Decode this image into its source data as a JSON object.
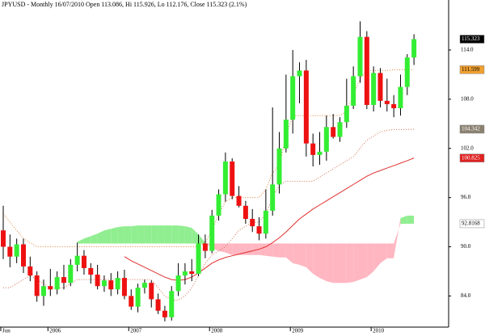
{
  "chart_data": {
    "type": "candlestick",
    "title": "JPYUSD - Monthly 16/07/2010 Open 113.086, Hi 115.926, Lo 112.176, Close 115.323 (2.1%)",
    "categories": [
      "Jun",
      null,
      null,
      null,
      null,
      null,
      null,
      "2006",
      null,
      null,
      null,
      null,
      null,
      null,
      null,
      null,
      null,
      null,
      null,
      "2007",
      null,
      null,
      null,
      null,
      null,
      null,
      null,
      null,
      null,
      null,
      null,
      "2008",
      null,
      null,
      null,
      null,
      null,
      null,
      null,
      null,
      null,
      null,
      null,
      "2009",
      null,
      null,
      null,
      null,
      null,
      null,
      null,
      null,
      null,
      null,
      null,
      "2010",
      null,
      null,
      null,
      null,
      null,
      null
    ],
    "open": [
      92.0,
      90.0,
      88.8,
      90.3,
      87.6,
      86.5,
      84.0,
      85.2,
      84.8,
      86.3,
      85.6,
      87.8,
      88.9,
      87.4,
      86.6,
      85.2,
      85.9,
      84.8,
      86.2,
      84.0,
      82.7,
      85.0,
      85.6,
      83.6,
      82.2,
      81.4,
      84.6,
      86.5,
      87.0,
      86.7,
      90.4,
      89.5,
      93.8,
      96.4,
      100.4,
      96.2,
      95.0,
      93.4,
      92.5,
      91.6,
      94.4,
      97.6,
      102.0,
      105.5,
      110.8,
      111.5,
      102.6,
      101.2,
      101.6,
      104.6,
      103.4,
      105.2,
      107.2,
      110.8,
      115.6,
      107.3,
      111.2,
      107.8,
      107.4,
      106.9,
      109.5,
      113.086
    ],
    "high": [
      95.0,
      91.5,
      91.0,
      91.0,
      88.8,
      87.0,
      86.0,
      87.3,
      87.0,
      87.8,
      88.5,
      90.5,
      89.6,
      88.0,
      87.8,
      86.5,
      86.8,
      87.0,
      87.2,
      84.8,
      85.5,
      86.0,
      85.9,
      84.3,
      82.8,
      85.2,
      88.0,
      88.0,
      88.5,
      91.5,
      91.5,
      94.5,
      97.0,
      101.5,
      100.8,
      97.4,
      95.6,
      94.6,
      93.6,
      97.0,
      107.0,
      104.0,
      111.0,
      114.0,
      112.5,
      112.8,
      103.8,
      104.0,
      106.0,
      106.2,
      105.8,
      110.5,
      112.0,
      117.5,
      116.3,
      112.0,
      111.8,
      110.5,
      108.5,
      111.0,
      113.5,
      115.926
    ],
    "low": [
      88.5,
      87.5,
      88.0,
      86.8,
      85.8,
      83.3,
      82.8,
      84.0,
      84.2,
      84.8,
      85.2,
      87.0,
      86.6,
      85.5,
      84.8,
      84.5,
      84.0,
      84.2,
      83.6,
      82.3,
      82.0,
      84.3,
      82.6,
      81.8,
      80.9,
      81.0,
      84.0,
      85.4,
      85.8,
      86.4,
      88.6,
      89.2,
      93.2,
      95.5,
      95.8,
      94.8,
      92.8,
      91.8,
      90.8,
      91.0,
      93.8,
      96.5,
      101.5,
      103.8,
      107.5,
      101.0,
      99.8,
      100.0,
      100.5,
      103.2,
      102.8,
      104.5,
      106.8,
      110.0,
      106.8,
      106.5,
      107.0,
      106.5,
      105.8,
      106.0,
      108.5,
      112.176
    ],
    "close": [
      90.0,
      88.8,
      90.3,
      87.6,
      86.5,
      84.0,
      85.2,
      84.8,
      86.3,
      85.6,
      87.8,
      88.9,
      87.4,
      86.6,
      85.2,
      85.9,
      84.8,
      86.2,
      84.0,
      82.7,
      85.0,
      85.6,
      83.6,
      82.2,
      81.4,
      84.6,
      86.5,
      87.0,
      86.7,
      90.4,
      89.5,
      93.8,
      96.4,
      100.4,
      96.2,
      95.0,
      93.4,
      92.5,
      91.6,
      94.4,
      97.6,
      102.0,
      105.5,
      110.8,
      111.5,
      102.6,
      101.2,
      101.6,
      104.6,
      103.4,
      105.2,
      107.2,
      110.8,
      115.6,
      107.3,
      111.2,
      107.8,
      107.4,
      106.9,
      109.5,
      113.086,
      115.323
    ],
    "up_color": "#33ee33",
    "down_color": "#ee1111",
    "ylim": [
      80.2,
      120.1
    ],
    "yticks": [
      {
        "value": 84,
        "label": "84.0"
      },
      {
        "value": 90,
        "label": "90.0"
      },
      {
        "value": 96,
        "label": "96.0"
      },
      {
        "value": 102,
        "label": "102.0"
      },
      {
        "value": 108,
        "label": "108.0"
      },
      {
        "value": 114,
        "label": "114.0"
      }
    ],
    "overlays": [
      {
        "color": "#e03030",
        "dashed": false,
        "values": [
          null,
          null,
          null,
          null,
          null,
          null,
          null,
          null,
          null,
          null,
          null,
          null,
          null,
          null,
          null,
          null,
          null,
          null,
          88.8,
          88.3,
          87.9,
          87.5,
          87.1,
          86.7,
          86.3,
          86.0,
          85.9,
          86.0,
          86.3,
          86.8,
          87.4,
          88.0,
          88.4,
          88.7,
          88.9,
          89.1,
          89.3,
          89.5,
          89.7,
          90.0,
          90.5,
          91.1,
          91.8,
          92.6,
          93.4,
          94.0,
          94.6,
          95.1,
          95.6,
          96.1,
          96.6,
          97.1,
          97.6,
          98.1,
          98.6,
          99.0,
          99.3,
          99.6,
          99.9,
          100.2,
          100.5,
          100.825
        ]
      },
      {
        "color": "#e08030",
        "dashed": true,
        "values": [
          94.0,
          93.0,
          92.0,
          91.0,
          90.5,
          90.0,
          90.0,
          90.0,
          90.0,
          90.0,
          90.0,
          90.0,
          90.0,
          90.0,
          90.0,
          90.0,
          90.0,
          90.0,
          90.0,
          90.0,
          90.0,
          90.0,
          90.0,
          90.0,
          90.0,
          90.0,
          90.0,
          90.0,
          90.0,
          90.0,
          90.5,
          92.0,
          94.0,
          95.5,
          96.0,
          96.0,
          96.0,
          96.0,
          96.0,
          97.0,
          99.0,
          100.0,
          103.5,
          106.0,
          106.0,
          106.0,
          106.0,
          106.0,
          106.0,
          106.0,
          106.0,
          106.5,
          108.5,
          110.5,
          111.5,
          111.5,
          111.5,
          111.5,
          111.6,
          111.6,
          111.6,
          111.599
        ]
      },
      {
        "color": "#d07050",
        "dashed": true,
        "values": [
          85.0,
          85.0,
          85.5,
          86.0,
          86.5,
          86.0,
          85.5,
          85.0,
          85.0,
          85.0,
          85.5,
          86.0,
          86.0,
          86.0,
          86.0,
          86.0,
          86.0,
          86.0,
          86.0,
          86.0,
          86.0,
          86.0,
          86.0,
          85.0,
          84.0,
          83.5,
          83.5,
          84.0,
          85.0,
          86.5,
          88.0,
          89.0,
          89.5,
          90.0,
          91.0,
          92.0,
          92.5,
          93.0,
          93.0,
          94.0,
          96.0,
          97.5,
          98.0,
          98.0,
          98.0,
          98.0,
          98.0,
          98.5,
          99.0,
          99.5,
          100.0,
          100.5,
          101.0,
          102.0,
          103.0,
          103.5,
          104.0,
          104.2,
          104.3,
          104.3,
          104.3,
          104.342
        ]
      }
    ],
    "cloud": {
      "up_color": "#90ee90",
      "down_color": "#ffb6c1",
      "span_a": [
        null,
        null,
        null,
        null,
        null,
        null,
        null,
        null,
        null,
        null,
        null,
        90.6,
        91.0,
        91.3,
        91.6,
        92.0,
        92.2,
        92.4,
        92.5,
        92.5,
        92.6,
        92.6,
        92.6,
        92.6,
        92.6,
        92.6,
        92.6,
        92.5,
        92.3,
        91.5,
        90.5,
        89.8,
        89.5,
        89.3,
        89.0,
        89.0,
        89.0,
        89.0,
        89.0,
        88.9,
        88.8,
        88.7,
        88.7,
        88.0,
        87.8,
        87.5,
        86.7,
        86.2,
        85.8,
        85.6,
        85.6,
        85.6,
        85.7,
        86.0,
        86.3,
        87.0,
        88.0,
        88.6,
        88.6,
        93.5,
        93.8,
        93.8
      ],
      "span_b": [
        null,
        null,
        null,
        null,
        null,
        null,
        null,
        null,
        null,
        null,
        null,
        90.4,
        90.4,
        90.4,
        90.4,
        90.4,
        90.4,
        90.4,
        90.4,
        90.4,
        90.4,
        90.4,
        90.4,
        90.4,
        90.4,
        90.4,
        90.4,
        90.4,
        90.4,
        90.4,
        90.4,
        90.4,
        90.4,
        90.4,
        90.4,
        90.4,
        90.4,
        90.4,
        90.4,
        90.4,
        90.4,
        90.4,
        90.4,
        90.4,
        90.4,
        90.4,
        90.4,
        90.4,
        90.4,
        90.4,
        90.4,
        90.4,
        90.4,
        90.4,
        90.4,
        90.4,
        90.4,
        90.4,
        90.4,
        92.8,
        92.8,
        92.8168
      ]
    },
    "price_markers": [
      {
        "value": 115.323,
        "color": "#000000",
        "text_color": "#ffffff"
      },
      {
        "value": 111.599,
        "color": "#f0a030",
        "text_color": "#000000"
      },
      {
        "value": 104.342,
        "color": "#8a8070",
        "text_color": "#ffffff"
      },
      {
        "value": 100.825,
        "color": "#e02020",
        "text_color": "#ffffff"
      },
      {
        "value": 92.8168,
        "color": "#ffffff",
        "text_color": "#000000"
      }
    ]
  }
}
